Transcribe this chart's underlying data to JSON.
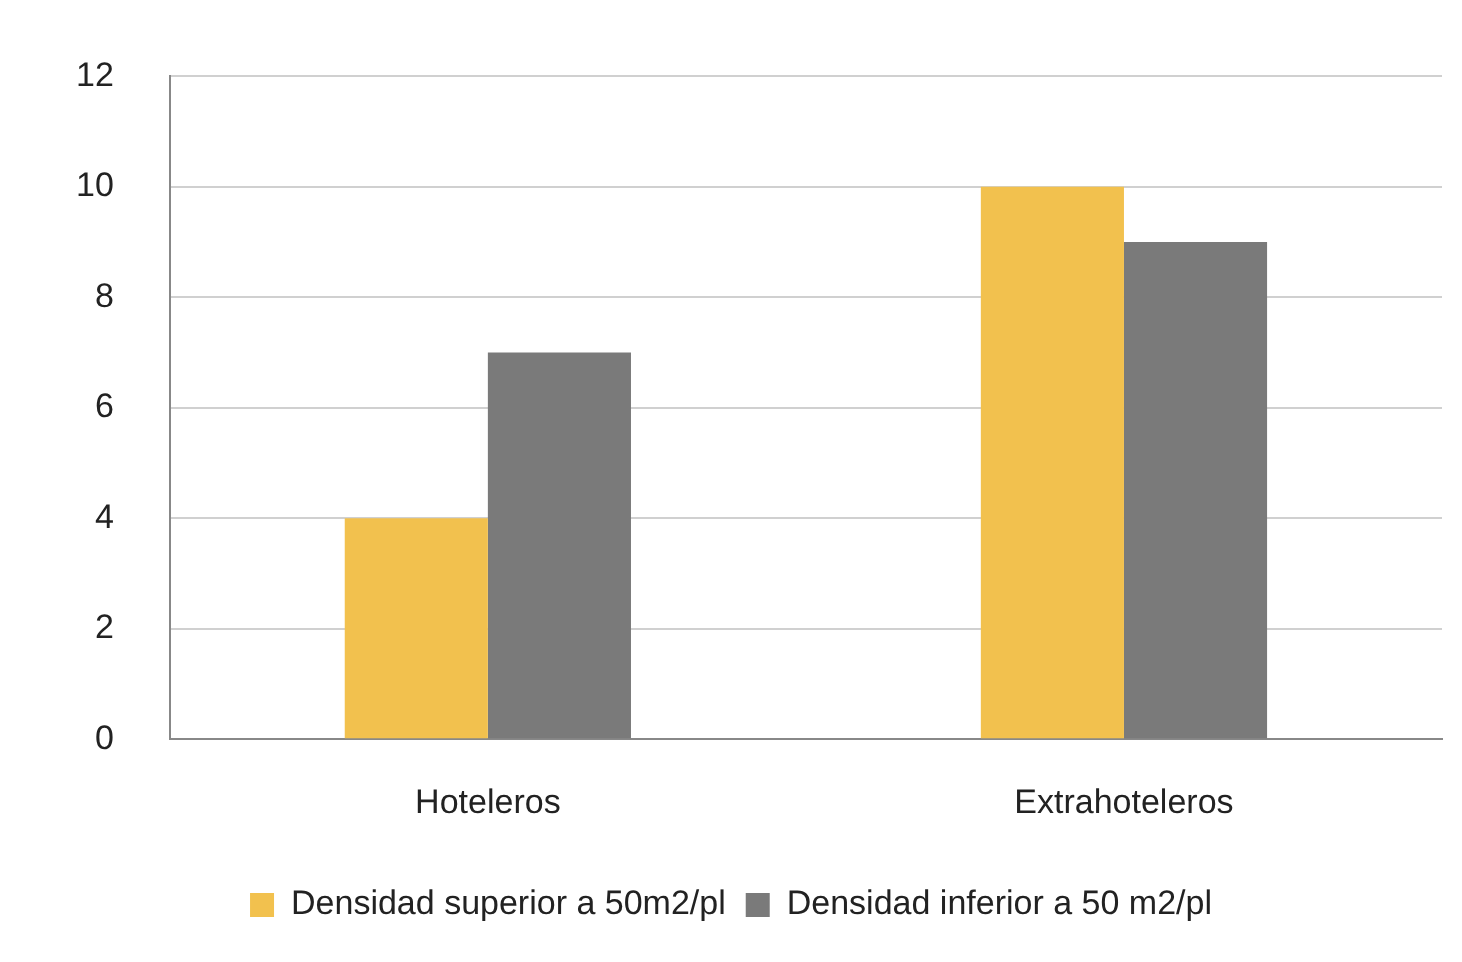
{
  "chart_data": {
    "type": "bar",
    "categories": [
      "Hoteleros",
      "Extrahoteleros"
    ],
    "series": [
      {
        "name": "Densidad superior a 50m2/pl",
        "color": "#f2c14e",
        "values": [
          4,
          10
        ]
      },
      {
        "name": "Densidad inferior a 50 m2/pl",
        "color": "#7a7a7a",
        "values": [
          7,
          9
        ]
      }
    ],
    "ylim": [
      0,
      12
    ],
    "yticks": [
      0,
      2,
      4,
      6,
      8,
      10,
      12
    ],
    "grid": "y",
    "legend": "bottom"
  }
}
